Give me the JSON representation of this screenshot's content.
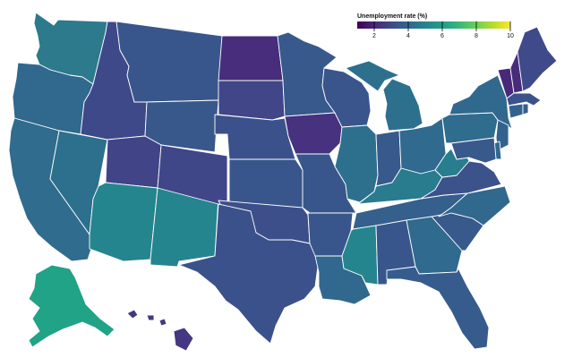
{
  "legend": {
    "title": "Unemployment rate (%)",
    "ticks": [
      "2",
      "4",
      "6",
      "8",
      "10"
    ],
    "domain": [
      1,
      10
    ],
    "colors": [
      "#440154",
      "#472d7b",
      "#3b528b",
      "#2c728e",
      "#21918c",
      "#28ae80",
      "#5ec962",
      "#addc30",
      "#fde725"
    ]
  },
  "states": [
    {
      "id": "WA",
      "value": 5.3,
      "color": "#2c7a8c"
    },
    {
      "id": "OR",
      "value": 4.6,
      "color": "#31688e"
    },
    {
      "id": "CA",
      "value": 4.8,
      "color": "#2f6c8e"
    },
    {
      "id": "NV",
      "value": 5.0,
      "color": "#2d708e"
    },
    {
      "id": "ID",
      "value": 3.2,
      "color": "#3e4989"
    },
    {
      "id": "MT",
      "value": 4.0,
      "color": "#39568c"
    },
    {
      "id": "WY",
      "value": 4.1,
      "color": "#38588c"
    },
    {
      "id": "UT",
      "value": 3.1,
      "color": "#414487"
    },
    {
      "id": "AZ",
      "value": 5.9,
      "color": "#25858e"
    },
    {
      "id": "NM",
      "value": 5.9,
      "color": "#25858e"
    },
    {
      "id": "CO",
      "value": 3.3,
      "color": "#3f4788"
    },
    {
      "id": "ND",
      "value": 2.3,
      "color": "#472d7b"
    },
    {
      "id": "SD",
      "value": 3.3,
      "color": "#404688"
    },
    {
      "id": "NE",
      "value": 3.6,
      "color": "#3b518b"
    },
    {
      "id": "KS",
      "value": 4.0,
      "color": "#39568c"
    },
    {
      "id": "OK",
      "value": 3.5,
      "color": "#3c4f8a"
    },
    {
      "id": "TX",
      "value": 3.6,
      "color": "#3b518b"
    },
    {
      "id": "MN",
      "value": 4.1,
      "color": "#38598c"
    },
    {
      "id": "IA",
      "value": 2.6,
      "color": "#46327e"
    },
    {
      "id": "MO",
      "value": 4.0,
      "color": "#39568c"
    },
    {
      "id": "AR",
      "value": 4.0,
      "color": "#39568c"
    },
    {
      "id": "LA",
      "value": 4.6,
      "color": "#31688e"
    },
    {
      "id": "WI",
      "value": 3.8,
      "color": "#3a548c"
    },
    {
      "id": "IL",
      "value": 5.0,
      "color": "#2d708e"
    },
    {
      "id": "MI",
      "value": 5.0,
      "color": "#2d708e"
    },
    {
      "id": "IN",
      "value": 4.1,
      "color": "#38598c"
    },
    {
      "id": "OH",
      "value": 4.7,
      "color": "#306a8e"
    },
    {
      "id": "KY",
      "value": 5.5,
      "color": "#297b8e"
    },
    {
      "id": "TN",
      "value": 4.3,
      "color": "#355f8d"
    },
    {
      "id": "MS",
      "value": 5.9,
      "color": "#25858e"
    },
    {
      "id": "AL",
      "value": 4.0,
      "color": "#39568c"
    },
    {
      "id": "GA",
      "value": 4.7,
      "color": "#306a8e"
    },
    {
      "id": "FL",
      "value": 4.2,
      "color": "#365c8d"
    },
    {
      "id": "SC",
      "value": 4.1,
      "color": "#38598c"
    },
    {
      "id": "NC",
      "value": 4.6,
      "color": "#31688e"
    },
    {
      "id": "VA",
      "value": 3.6,
      "color": "#3b528b"
    },
    {
      "id": "WV",
      "value": 5.6,
      "color": "#287d8e"
    },
    {
      "id": "PA",
      "value": 4.8,
      "color": "#2f6c8e"
    },
    {
      "id": "NY",
      "value": 4.6,
      "color": "#31688e"
    },
    {
      "id": "VT",
      "value": 2.8,
      "color": "#482878"
    },
    {
      "id": "NH",
      "value": 2.7,
      "color": "#472c7a"
    },
    {
      "id": "ME",
      "value": 3.4,
      "color": "#3e4a89"
    },
    {
      "id": "MA",
      "value": 3.6,
      "color": "#3b528b"
    },
    {
      "id": "CT",
      "value": 4.4,
      "color": "#33638d"
    },
    {
      "id": "RI",
      "value": 4.3,
      "color": "#355f8d"
    },
    {
      "id": "NJ",
      "value": 4.4,
      "color": "#33638d"
    },
    {
      "id": "DE",
      "value": 4.6,
      "color": "#31688e"
    },
    {
      "id": "MD",
      "value": 4.1,
      "color": "#38598c"
    },
    {
      "id": "AK",
      "value": 7.2,
      "color": "#20a386"
    },
    {
      "id": "HI",
      "value": 2.8,
      "color": "#453781"
    }
  ]
}
